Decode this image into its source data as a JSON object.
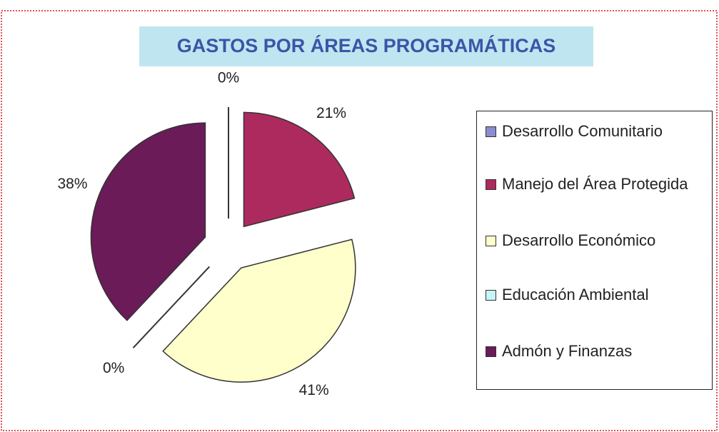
{
  "chart_data": {
    "type": "pie",
    "title": "GASTOS POR ÁREAS PROGRAMÁTICAS",
    "categories": [
      "Desarrollo Comunitario",
      "Manejo del Área Protegida",
      "Desarrollo Económico",
      "Educación Ambiental",
      "Admón y Finanzas"
    ],
    "values": [
      0,
      21,
      41,
      0,
      38
    ],
    "value_labels": [
      "0%",
      "21%",
      "41%",
      "0%",
      "38%"
    ],
    "colors": [
      "#8c8cd0",
      "#ad2a5e",
      "#ffffcc",
      "#c8f4f8",
      "#6a1b58"
    ],
    "legend": "right"
  }
}
